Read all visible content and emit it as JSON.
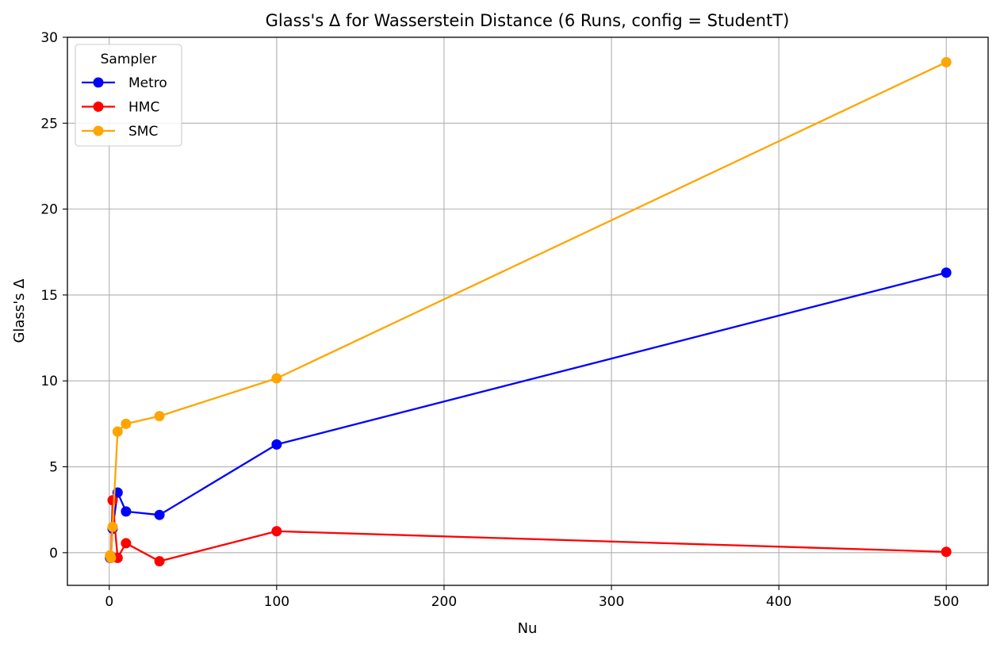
{
  "chart_data": {
    "type": "line",
    "title": "Glass's Δ for Wasserstein Distance (6 Runs, config = StudentT)",
    "xlabel": "Nu",
    "ylabel": "Glass's Δ",
    "xlim": [
      -25,
      525
    ],
    "ylim": [
      -1.9,
      30
    ],
    "x_ticks": [
      0,
      100,
      200,
      300,
      400,
      500
    ],
    "y_ticks": [
      0,
      5,
      10,
      15,
      20,
      25,
      30
    ],
    "grid": true,
    "legend": {
      "title": "Sampler",
      "placement": "upper-left"
    },
    "x": [
      0.5,
      1,
      2,
      5,
      10,
      30,
      100,
      500
    ],
    "series": [
      {
        "name": "Metro",
        "color": "#0000ff",
        "values": [
          -0.3,
          -0.2,
          1.4,
          3.5,
          2.4,
          2.2,
          6.3,
          16.3
        ]
      },
      {
        "name": "HMC",
        "color": "#ff0000",
        "values": [
          -0.2,
          -0.3,
          3.05,
          -0.3,
          0.55,
          -0.5,
          1.25,
          0.05
        ]
      },
      {
        "name": "SMC",
        "color": "#ffa500",
        "values": [
          -0.15,
          -0.3,
          1.5,
          7.05,
          7.5,
          7.95,
          10.15,
          28.55
        ]
      }
    ]
  }
}
